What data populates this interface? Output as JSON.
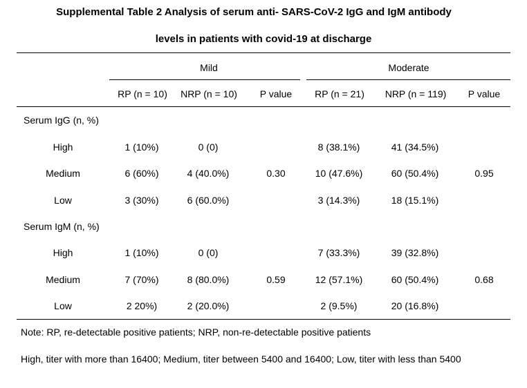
{
  "title_line1": "Supplemental Table 2 Analysis of serum anti- SARS-CoV-2 IgG and IgM antibody",
  "title_line2": "levels in patients with covid-19 at discharge",
  "groups": {
    "mild": "Mild",
    "moderate": "Moderate"
  },
  "columns": [
    "RP (n = 10)",
    "NRP (n = 10)",
    "P value",
    "RP (n = 21)",
    "NRP (n = 119)",
    "P value"
  ],
  "sections": [
    {
      "label": "Serum IgG (n, %)",
      "rows": [
        {
          "level": "High",
          "mild_rp": "1 (10%)",
          "mild_nrp": "0 (0)",
          "mild_p": "",
          "mod_rp": "8 (38.1%)",
          "mod_nrp": "41 (34.5%)",
          "mod_p": ""
        },
        {
          "level": "Medium",
          "mild_rp": "6 (60%)",
          "mild_nrp": "4 (40.0%)",
          "mild_p": "0.30",
          "mod_rp": "10 (47.6%)",
          "mod_nrp": "60 (50.4%)",
          "mod_p": "0.95"
        },
        {
          "level": "Low",
          "mild_rp": "3 (30%)",
          "mild_nrp": "6 (60.0%)",
          "mild_p": "",
          "mod_rp": "3 (14.3%)",
          "mod_nrp": "18 (15.1%)",
          "mod_p": ""
        }
      ]
    },
    {
      "label": "Serum IgM (n, %)",
      "rows": [
        {
          "level": "High",
          "mild_rp": "1 (10%)",
          "mild_nrp": "0 (0)",
          "mild_p": "",
          "mod_rp": "7 (33.3%)",
          "mod_nrp": "39 (32.8%)",
          "mod_p": ""
        },
        {
          "level": "Medium",
          "mild_rp": "7 (70%)",
          "mild_nrp": "8 (80.0%)",
          "mild_p": "0.59",
          "mod_rp": "12 (57.1%)",
          "mod_nrp": "60 (50.4%)",
          "mod_p": "0.68"
        },
        {
          "level": "Low",
          "mild_rp": "2 20%)",
          "mild_nrp": "2 (20.0%)",
          "mild_p": "",
          "mod_rp": "2 (9.5%)",
          "mod_nrp": "20 (16.8%)",
          "mod_p": ""
        }
      ]
    }
  ],
  "notes": [
    "Note: RP, re-detectable positive patients; NRP, non-re-detectable positive patients",
    "High, titer with more than 16400; Medium, titer between 5400 and 16400; Low, titer with less than 5400"
  ]
}
